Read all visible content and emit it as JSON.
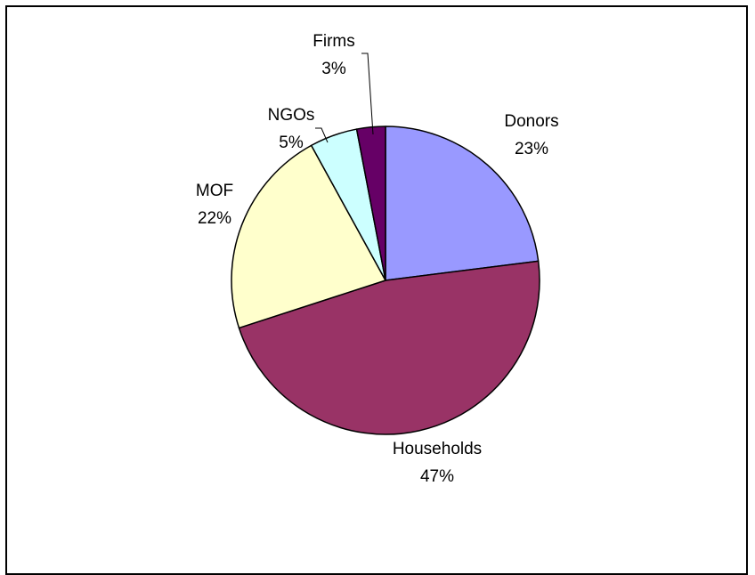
{
  "chart_data": {
    "type": "pie",
    "slices": [
      {
        "label": "Donors",
        "percent_label": "23%",
        "value": 23,
        "color": "#9999FF"
      },
      {
        "label": "Households",
        "percent_label": "47%",
        "value": 47,
        "color": "#993366"
      },
      {
        "label": "MOF",
        "percent_label": "22%",
        "value": 22,
        "color": "#FFFFCC"
      },
      {
        "label": "NGOs",
        "percent_label": "5%",
        "value": 5,
        "color": "#CCFFFF"
      },
      {
        "label": "Firms",
        "percent_label": "3%",
        "value": 3,
        "color": "#660066"
      }
    ],
    "start_angle_deg": 0,
    "direction": "clockwise",
    "legend": "none"
  }
}
